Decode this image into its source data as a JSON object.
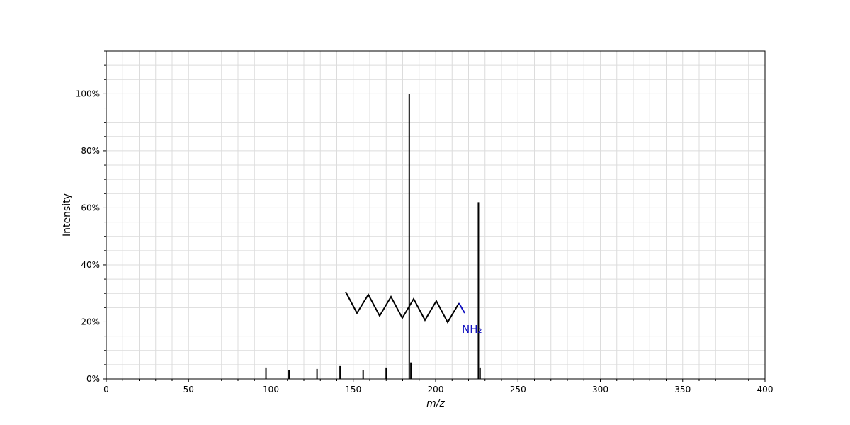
{
  "chart_data": {
    "type": "bar",
    "xlabel": "m/z",
    "ylabel": "Intensity",
    "xlim": [
      0,
      400
    ],
    "ylim": [
      0,
      115
    ],
    "grid": true,
    "x_ticks": [
      0,
      50,
      100,
      150,
      200,
      250,
      300,
      350,
      400
    ],
    "y_ticks": [
      0,
      20,
      40,
      60,
      80,
      100
    ],
    "y_tick_labels": [
      "0%",
      "20%",
      "40%",
      "60%",
      "80%",
      "100%"
    ],
    "peaks": [
      {
        "mz": 97,
        "intensity": 4.0
      },
      {
        "mz": 111,
        "intensity": 3.0
      },
      {
        "mz": 128,
        "intensity": 3.5
      },
      {
        "mz": 142,
        "intensity": 4.5
      },
      {
        "mz": 156,
        "intensity": 3.0
      },
      {
        "mz": 170,
        "intensity": 4.0
      },
      {
        "mz": 184,
        "intensity": 100.0
      },
      {
        "mz": 185,
        "intensity": 5.8
      },
      {
        "mz": 226,
        "intensity": 62.0
      },
      {
        "mz": 227,
        "intensity": 4.0
      }
    ],
    "structure_label": "NH₂"
  }
}
